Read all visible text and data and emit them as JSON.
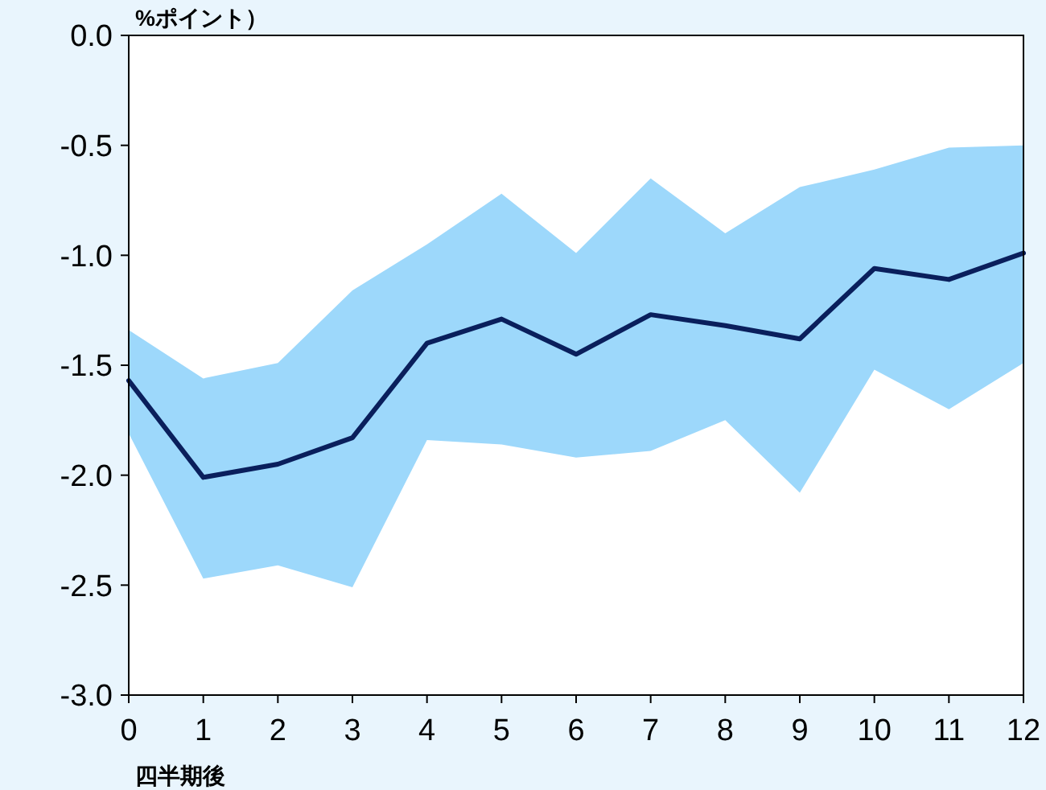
{
  "chart_data": {
    "type": "line",
    "ylabel": "%ポイント）",
    "xlabel": "四半期後",
    "x": [
      0,
      1,
      2,
      3,
      4,
      5,
      6,
      7,
      8,
      9,
      10,
      11,
      12
    ],
    "xlim": [
      0,
      12
    ],
    "xticks": [
      0,
      1,
      2,
      3,
      4,
      5,
      6,
      7,
      8,
      9,
      10,
      11,
      12
    ],
    "ylim": [
      -3,
      0
    ],
    "yticks": [
      {
        "value": -3,
        "label": "-3.0"
      },
      {
        "value": -2.5,
        "label": "-2.5"
      },
      {
        "value": -2,
        "label": "-2.0"
      },
      {
        "value": -1.5,
        "label": "-1.5"
      },
      {
        "value": -1,
        "label": "-1.0"
      },
      {
        "value": -0.5,
        "label": "-0.5"
      },
      {
        "value": 0,
        "label": "0.0"
      }
    ],
    "grid": false,
    "marker": "none",
    "line_style": "solid",
    "series": [
      {
        "color": "#0a1f5c",
        "values": [
          -1.57,
          -2.01,
          -1.95,
          -1.83,
          -1.4,
          -1.29,
          -1.45,
          -1.27,
          -1.32,
          -1.38,
          -1.06,
          -1.11,
          -0.99
        ],
        "lower": [
          -1.81,
          -2.47,
          -2.41,
          -2.51,
          -1.84,
          -1.86,
          -1.92,
          -1.89,
          -1.75,
          -2.08,
          -1.52,
          -1.7,
          -1.49
        ],
        "upper": [
          -1.34,
          -1.56,
          -1.49,
          -1.16,
          -0.95,
          -0.72,
          -0.99,
          -0.65,
          -0.9,
          -0.69,
          -0.61,
          -0.51,
          -0.5
        ]
      }
    ]
  }
}
